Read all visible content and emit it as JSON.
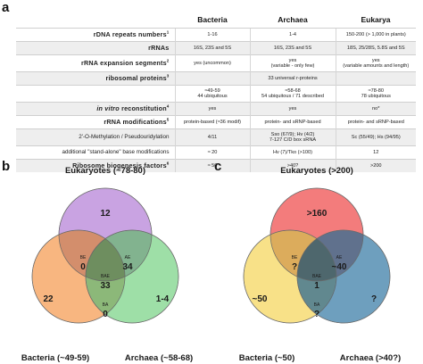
{
  "panel_a": {
    "letter": "a",
    "headers": [
      "Bacteria",
      "Archaea",
      "Eukarya"
    ],
    "rows": [
      {
        "label": "rDNA repeats numbers",
        "sup": "1",
        "style": "strong",
        "cells": [
          "1-16",
          "1-4",
          "150-200 (> 1,000 in plants)"
        ]
      },
      {
        "label": "rRNAs",
        "sup": "",
        "style": "strong",
        "cells": [
          "16S, 23S and 5S",
          "16S, 23S and 5S",
          "18S, 25/28S, 5.8S and 5S"
        ]
      },
      {
        "label": "rRNA expansion segments",
        "sup": "2",
        "style": "strong",
        "cells": [
          "yes (uncommon)",
          "yes\n(variable - only few)",
          "yes\n(variable amounts and length)"
        ]
      },
      {
        "label": "ribosomal proteins",
        "sup": "3",
        "style": "strong",
        "cells": [
          "",
          "33 universal r-proteins",
          ""
        ]
      },
      {
        "label": "",
        "sup": "",
        "style": "plain",
        "cells": [
          "≈49-59\n44 ubiquitous",
          "≈58-68\n54 ubiquitous / 71 described",
          "≈78-80\n78 ubiquitous"
        ]
      },
      {
        "label": "reconstitution",
        "prefix": "in vitro",
        "sup": "4",
        "style": "strong",
        "cells": [
          "yes",
          "yes",
          "no*"
        ]
      },
      {
        "label": "rRNA modifications",
        "sup": "5",
        "style": "strong",
        "cells": [
          "protein-based (≈36 modif)",
          "protein- and sRNP-based",
          "protein- and sRNP-based"
        ]
      },
      {
        "label": "2'-O-Methylation / Pseudouridylation",
        "sup": "",
        "style": "plain",
        "cells": [
          "4/11",
          "Sso (67/9); Hv (4/2)\n7-127 C/D box sRNA",
          "Sc (55/49); Hs (94/95)"
        ]
      },
      {
        "label": "additional \"stand-alone\" base modifications",
        "sup": "",
        "style": "plain",
        "cells": [
          "≈ 20",
          "Hv (7)/Tko (>100)",
          "12"
        ]
      },
      {
        "label": "Ribosome biogenesis factors",
        "sup": "6",
        "style": "strong",
        "cells": [
          "≈ 50",
          ">40?",
          ">200"
        ]
      }
    ]
  },
  "panel_b": {
    "letter": "b",
    "labels": {
      "top": "Eukaryotes (~78-80)",
      "left": "Bacteria (~49-59)",
      "right": "Archaea (~58-68)"
    },
    "regions": {
      "E": "12",
      "B": "22",
      "A": "1-4",
      "BE_tag": "BE",
      "BE": "0",
      "AE_tag": "AE",
      "AE": "34",
      "BAE_tag": "BAE",
      "BAE": "33",
      "BA_tag": "BA",
      "BA": "0"
    },
    "colors": {
      "top": "#b784d8",
      "left": "#f59e55",
      "right": "#7ed48a"
    }
  },
  "panel_c": {
    "letter": "c",
    "labels": {
      "top": "Eukaryotes (>200)",
      "left": "Bacteria (~50)",
      "right": "Archaea (>40?)"
    },
    "regions": {
      "E": ">160",
      "B": "~50",
      "A": "?",
      "BE_tag": "BE",
      "BE": "?",
      "AE_tag": "AE",
      "AE": "~40",
      "BAE_tag": "BAE",
      "BAE": "1",
      "BA_tag": "BA",
      "BA": "?"
    },
    "colors": {
      "top": "#ef5050",
      "left": "#f5d760",
      "right": "#3e7fa8"
    }
  }
}
